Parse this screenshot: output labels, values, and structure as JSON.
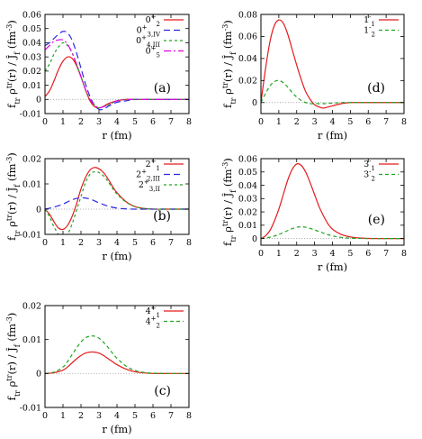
{
  "figure": {
    "ylabel_parts": [
      {
        "t": "f",
        "s": ""
      },
      {
        "t": "tr",
        "s": "sub"
      },
      {
        "t": " ρ",
        "s": ""
      },
      {
        "t": "tr",
        "s": "sup"
      },
      {
        "t": "(r) / ",
        "s": ""
      },
      {
        "t": "Ĵ",
        "s": ""
      },
      {
        "t": "f",
        "s": "sub"
      },
      {
        "t": " (fm",
        "s": ""
      },
      {
        "t": "-3",
        "s": "sup"
      },
      {
        "t": ")",
        "s": ""
      }
    ],
    "xlabel": "r (fm)"
  },
  "chart_data": [
    {
      "id": "a",
      "tag": "(a)",
      "type": "line",
      "xlim": [
        0,
        8
      ],
      "ylim": [
        -0.01,
        0.06
      ],
      "xticks": [
        0,
        1,
        2,
        3,
        4,
        5,
        6,
        7,
        8
      ],
      "yticks": [
        -0.01,
        0,
        0.01,
        0.02,
        0.03,
        0.04,
        0.05,
        0.06
      ],
      "yticklabels": [
        "-0.01",
        "0",
        "0.01",
        "0.02",
        "0.03",
        "0.04",
        "0.05",
        "0.06"
      ],
      "legend_position": "top-right",
      "series": [
        {
          "label": [
            {
              "t": "0",
              "s": ""
            },
            {
              "t": "+",
              "s": "sup"
            },
            {
              "t": "2",
              "s": "sub"
            }
          ],
          "color": "#e41a1c",
          "dash": "",
          "x": [
            0,
            0.25,
            0.5,
            0.75,
            1,
            1.25,
            1.5,
            1.75,
            2,
            2.25,
            2.5,
            2.75,
            3,
            3.25,
            3.5,
            4,
            4.5,
            5,
            6,
            7,
            8
          ],
          "y": [
            0.002,
            0.006,
            0.013,
            0.021,
            0.027,
            0.03,
            0.029,
            0.024,
            0.016,
            0.007,
            -0.001,
            -0.005,
            -0.006,
            -0.005,
            -0.003,
            -0.001,
            0,
            0,
            0,
            0,
            0
          ]
        },
        {
          "label": [
            {
              "t": "0",
              "s": ""
            },
            {
              "t": "+",
              "s": "sup"
            },
            {
              "t": "3,IV",
              "s": "sub"
            }
          ],
          "color": "#2a2ae0",
          "dash": "7,4",
          "x": [
            0,
            0.25,
            0.5,
            0.75,
            1,
            1.25,
            1.5,
            1.75,
            2,
            2.25,
            2.5,
            2.75,
            3,
            3.25,
            3.5,
            4,
            4.5,
            5,
            6,
            7,
            8
          ],
          "y": [
            0.038,
            0.04,
            0.043,
            0.046,
            0.048,
            0.047,
            0.042,
            0.033,
            0.022,
            0.011,
            0.002,
            -0.004,
            -0.007,
            -0.007,
            -0.005,
            -0.002,
            -0.001,
            0,
            0,
            0,
            0
          ]
        },
        {
          "label": [
            {
              "t": "0",
              "s": ""
            },
            {
              "t": "+",
              "s": "sup"
            },
            {
              "t": "4,III",
              "s": "sub"
            }
          ],
          "color": "#22a422",
          "dash": "3,3",
          "x": [
            0,
            0.25,
            0.5,
            0.75,
            1,
            1.25,
            1.5,
            1.75,
            2,
            2.25,
            2.5,
            2.75,
            3,
            3.25,
            3.5,
            4,
            4.5,
            5,
            6,
            7,
            8
          ],
          "y": [
            0.02,
            0.025,
            0.032,
            0.037,
            0.04,
            0.038,
            0.033,
            0.025,
            0.016,
            0.007,
            0,
            -0.004,
            -0.006,
            -0.005,
            -0.004,
            -0.001,
            0,
            0,
            0,
            0,
            0
          ]
        },
        {
          "label": [
            {
              "t": "0",
              "s": ""
            },
            {
              "t": "+",
              "s": "sup"
            },
            {
              "t": "5",
              "s": "sub"
            }
          ],
          "color": "#e000e0",
          "dash": "8,3,2,3",
          "x": [
            0,
            0.25,
            0.5,
            0.75,
            1,
            1.25,
            1.5,
            1.75,
            2,
            2.25,
            2.5,
            2.75,
            3,
            3.25,
            3.5,
            4,
            4.5,
            5,
            6,
            7,
            8
          ],
          "y": [
            0.035,
            0.038,
            0.041,
            0.042,
            0.042,
            0.039,
            0.033,
            0.025,
            0.016,
            0.007,
            0,
            -0.004,
            -0.006,
            -0.005,
            -0.004,
            -0.001,
            0,
            0,
            0,
            0,
            0
          ]
        }
      ]
    },
    {
      "id": "d",
      "tag": "(d)",
      "type": "line",
      "xlim": [
        0,
        8
      ],
      "ylim": [
        -0.01,
        0.08
      ],
      "xticks": [
        0,
        1,
        2,
        3,
        4,
        5,
        6,
        7,
        8
      ],
      "yticks": [
        0,
        0.02,
        0.04,
        0.06,
        0.08
      ],
      "yticklabels": [
        "0",
        "0.02",
        "0.04",
        "0.06",
        "0.08"
      ],
      "legend_position": "top-right",
      "series": [
        {
          "label": [
            {
              "t": "1",
              "s": ""
            },
            {
              "t": "-",
              "s": "sup"
            },
            {
              "t": "1",
              "s": "sub"
            }
          ],
          "color": "#e41a1c",
          "dash": "",
          "x": [
            0,
            0.25,
            0.5,
            0.75,
            1,
            1.25,
            1.5,
            1.75,
            2,
            2.25,
            2.5,
            2.75,
            3,
            3.25,
            3.5,
            3.75,
            4,
            4.5,
            5,
            6,
            7,
            8
          ],
          "y": [
            0,
            0.03,
            0.055,
            0.07,
            0.075,
            0.072,
            0.062,
            0.048,
            0.034,
            0.021,
            0.01,
            0.003,
            -0.002,
            -0.004,
            -0.005,
            -0.004,
            -0.003,
            -0.001,
            0,
            0,
            0,
            0
          ]
        },
        {
          "label": [
            {
              "t": "1",
              "s": ""
            },
            {
              "t": "-",
              "s": "sup"
            },
            {
              "t": "2",
              "s": "sub"
            }
          ],
          "color": "#22a422",
          "dash": "4,3",
          "x": [
            0,
            0.25,
            0.5,
            0.75,
            1,
            1.25,
            1.5,
            1.75,
            2,
            2.25,
            2.5,
            2.75,
            3,
            3.25,
            3.5,
            4,
            4.5,
            5,
            6,
            7,
            8
          ],
          "y": [
            0,
            0.008,
            0.015,
            0.019,
            0.02,
            0.018,
            0.014,
            0.009,
            0.005,
            0.002,
            0,
            -0.001,
            -0.001,
            -0.001,
            -0.001,
            -0.0005,
            0,
            0,
            0,
            0,
            0
          ]
        }
      ]
    },
    {
      "id": "b",
      "tag": "(b)",
      "type": "line",
      "xlim": [
        0,
        8
      ],
      "ylim": [
        -0.01,
        0.02
      ],
      "xticks": [
        0,
        1,
        2,
        3,
        4,
        5,
        6,
        7,
        8
      ],
      "yticks": [
        -0.01,
        0,
        0.01,
        0.02
      ],
      "yticklabels": [
        "-0.01",
        "0",
        "0.01",
        "0.02"
      ],
      "legend_position": "top-right",
      "series": [
        {
          "label": [
            {
              "t": "2",
              "s": ""
            },
            {
              "t": "+",
              "s": "sup"
            },
            {
              "t": "1",
              "s": "sub"
            }
          ],
          "color": "#e41a1c",
          "dash": "",
          "x": [
            0,
            0.25,
            0.5,
            0.75,
            1,
            1.25,
            1.5,
            1.75,
            2,
            2.25,
            2.5,
            2.75,
            3,
            3.25,
            3.5,
            3.75,
            4,
            4.5,
            5,
            5.5,
            6,
            7,
            8
          ],
          "y": [
            0,
            -0.002,
            -0.005,
            -0.0075,
            -0.008,
            -0.0065,
            -0.003,
            0.002,
            0.008,
            0.0125,
            0.0155,
            0.0165,
            0.016,
            0.0145,
            0.012,
            0.009,
            0.0065,
            0.003,
            0.001,
            0.0003,
            0,
            0,
            0
          ]
        },
        {
          "label": [
            {
              "t": "2",
              "s": ""
            },
            {
              "t": "+",
              "s": "sup"
            },
            {
              "t": "2,III",
              "s": "sub"
            }
          ],
          "color": "#2a2ae0",
          "dash": "7,4",
          "x": [
            0,
            0.5,
            1,
            1.5,
            2,
            2.5,
            3,
            3.5,
            4,
            4.5,
            5,
            6,
            7,
            8
          ],
          "y": [
            0,
            0.0008,
            0.002,
            0.0037,
            0.0045,
            0.004,
            0.0025,
            0.0012,
            0.0004,
            0.0001,
            0,
            0,
            0,
            0
          ]
        },
        {
          "label": [
            {
              "t": "2",
              "s": ""
            },
            {
              "t": "+",
              "s": "sup"
            },
            {
              "t": "3,II",
              "s": "sub"
            }
          ],
          "color": "#22a422",
          "dash": "3,3",
          "x": [
            0,
            0.25,
            0.5,
            0.75,
            1,
            1.25,
            1.5,
            1.75,
            2,
            2.25,
            2.5,
            2.75,
            3,
            3.25,
            3.5,
            3.75,
            4,
            4.5,
            5,
            5.5,
            6,
            7,
            8
          ],
          "y": [
            0,
            -0.003,
            -0.007,
            -0.01,
            -0.0115,
            -0.01,
            -0.006,
            -0.0005,
            0.005,
            0.0105,
            0.0138,
            0.0148,
            0.0145,
            0.0132,
            0.011,
            0.0083,
            0.006,
            0.0028,
            0.001,
            0.0003,
            0,
            0,
            0
          ]
        }
      ]
    },
    {
      "id": "e",
      "tag": "(e)",
      "type": "line",
      "xlim": [
        0,
        8
      ],
      "ylim": [
        -0.005,
        0.06
      ],
      "xticks": [
        0,
        1,
        2,
        3,
        4,
        5,
        6,
        7,
        8
      ],
      "yticks": [
        0,
        0.01,
        0.02,
        0.03,
        0.04,
        0.05,
        0.06
      ],
      "yticklabels": [
        "0",
        "0.01",
        "0.02",
        "0.03",
        "0.04",
        "0.05",
        "0.06"
      ],
      "legend_position": "top-right",
      "series": [
        {
          "label": [
            {
              "t": "3",
              "s": ""
            },
            {
              "t": "-",
              "s": "sup"
            },
            {
              "t": "1",
              "s": "sub"
            }
          ],
          "color": "#e41a1c",
          "dash": "",
          "x": [
            0,
            0.25,
            0.5,
            0.75,
            1,
            1.25,
            1.5,
            1.75,
            2,
            2.25,
            2.5,
            2.75,
            3,
            3.25,
            3.5,
            3.75,
            4,
            4.5,
            5,
            5.5,
            6,
            7,
            8
          ],
          "y": [
            0,
            0.002,
            0.006,
            0.013,
            0.022,
            0.033,
            0.044,
            0.052,
            0.056,
            0.055,
            0.05,
            0.042,
            0.033,
            0.024,
            0.017,
            0.011,
            0.007,
            0.003,
            0.0012,
            0.0004,
            0.0001,
            0,
            0
          ]
        },
        {
          "label": [
            {
              "t": "3",
              "s": ""
            },
            {
              "t": "-",
              "s": "sup"
            },
            {
              "t": "2",
              "s": "sub"
            }
          ],
          "color": "#22a422",
          "dash": "4,3",
          "x": [
            0,
            0.5,
            1,
            1.5,
            2,
            2.5,
            3,
            3.5,
            4,
            4.5,
            5,
            6,
            7,
            8
          ],
          "y": [
            0,
            0.001,
            0.003,
            0.006,
            0.0085,
            0.0085,
            0.0065,
            0.004,
            0.002,
            0.0008,
            0.0003,
            0,
            0,
            0
          ]
        }
      ]
    },
    {
      "id": "c",
      "tag": "(c)",
      "type": "line",
      "xlim": [
        0,
        8
      ],
      "ylim": [
        -0.01,
        0.02
      ],
      "xticks": [
        0,
        1,
        2,
        3,
        4,
        5,
        6,
        7,
        8
      ],
      "yticks": [
        -0.01,
        0,
        0.01,
        0.02
      ],
      "yticklabels": [
        "-0.01",
        "0",
        "0.01",
        "0.02"
      ],
      "legend_position": "top-right",
      "series": [
        {
          "label": [
            {
              "t": "4",
              "s": ""
            },
            {
              "t": "+",
              "s": "sup"
            },
            {
              "t": "1",
              "s": "sub"
            }
          ],
          "color": "#e41a1c",
          "dash": "",
          "x": [
            0,
            0.5,
            1,
            1.25,
            1.5,
            1.75,
            2,
            2.25,
            2.5,
            2.75,
            3,
            3.25,
            3.5,
            3.75,
            4,
            4.5,
            5,
            5.5,
            6,
            7,
            8
          ],
          "y": [
            0,
            0.0002,
            0.001,
            0.0019,
            0.0031,
            0.0043,
            0.0053,
            0.006,
            0.0063,
            0.0063,
            0.006,
            0.0053,
            0.0044,
            0.0035,
            0.0026,
            0.0013,
            0.0005,
            0.0002,
            0,
            0,
            0
          ]
        },
        {
          "label": [
            {
              "t": "4",
              "s": ""
            },
            {
              "t": "+",
              "s": "sup"
            },
            {
              "t": "2",
              "s": "sub"
            }
          ],
          "color": "#22a422",
          "dash": "4,3",
          "x": [
            0,
            0.5,
            1,
            1.25,
            1.5,
            1.75,
            2,
            2.25,
            2.5,
            2.75,
            3,
            3.25,
            3.5,
            3.75,
            4,
            4.5,
            5,
            5.5,
            6,
            7,
            8
          ],
          "y": [
            0,
            0.0004,
            0.0019,
            0.0035,
            0.0055,
            0.0075,
            0.0093,
            0.0105,
            0.011,
            0.011,
            0.0104,
            0.0092,
            0.0077,
            0.006,
            0.0045,
            0.0022,
            0.0009,
            0.0003,
            0.0001,
            0,
            0
          ]
        }
      ]
    }
  ]
}
